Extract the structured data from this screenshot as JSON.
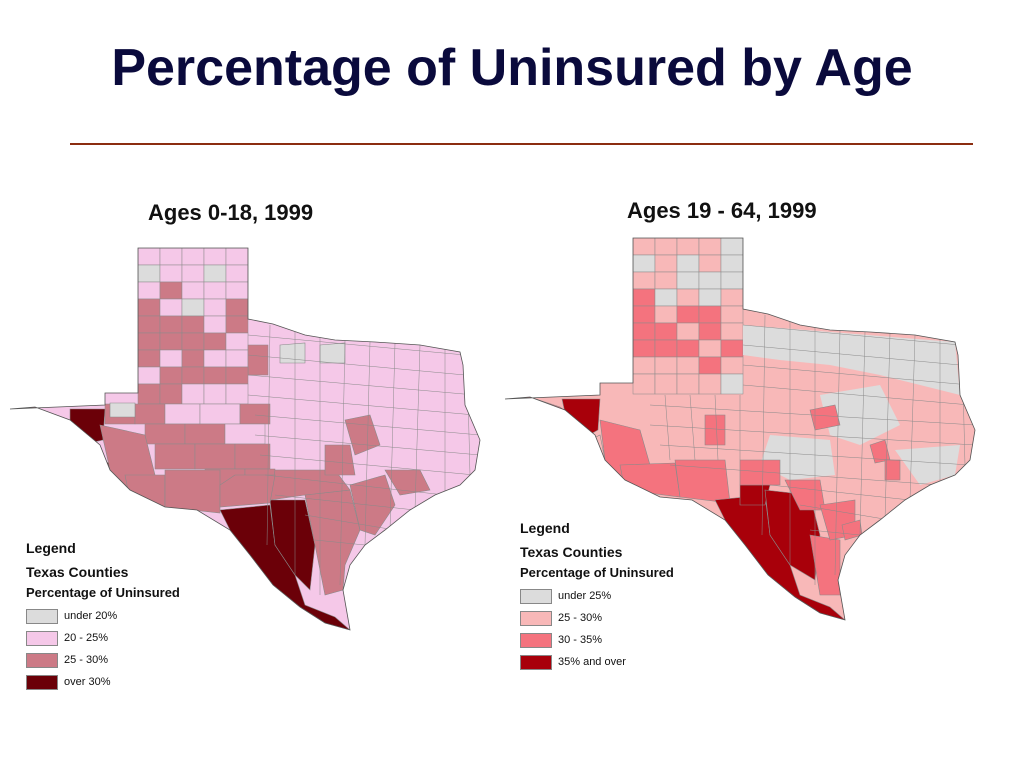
{
  "title": "Percentage of Uninsured by Age",
  "maps": [
    {
      "title": "Ages 0-18, 1999",
      "legend": {
        "heading": "Legend",
        "layer": "Texas Counties",
        "field": "Percentage of Uninsured",
        "classes": [
          {
            "label": "under 20%",
            "color": "#dcdcdc"
          },
          {
            "label": "20 - 25%",
            "color": "#f5c8e8"
          },
          {
            "label": "25 - 30%",
            "color": "#cc7a86"
          },
          {
            "label": "over 30%",
            "color": "#6b0008"
          }
        ]
      }
    },
    {
      "title": "Ages 19 - 64, 1999",
      "legend": {
        "heading": "Legend",
        "layer": "Texas Counties",
        "field": "Percentage of Uninsured",
        "classes": [
          {
            "label": "under 25%",
            "color": "#dcdcdc"
          },
          {
            "label": "25 - 30%",
            "color": "#f8b8b8"
          },
          {
            "label": "30 - 35%",
            "color": "#f4737e"
          },
          {
            "label": "35% and over",
            "color": "#a8000a"
          }
        ]
      }
    }
  ]
}
